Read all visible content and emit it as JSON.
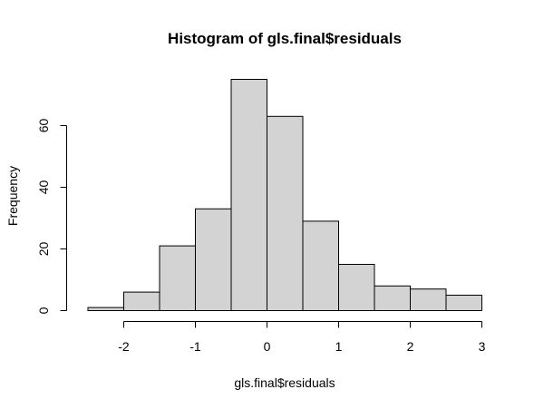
{
  "chart_data": {
    "type": "bar",
    "title": "Histogram of gls.final$residuals",
    "xlabel": "gls.final$residuals",
    "ylabel": "Frequency",
    "bin_edges": [
      -2.5,
      -2.0,
      -1.5,
      -1.0,
      -0.5,
      0.0,
      0.5,
      1.0,
      1.5,
      2.0,
      2.5,
      3.0
    ],
    "values": [
      1,
      6,
      21,
      33,
      75,
      63,
      29,
      15,
      8,
      7,
      5
    ],
    "xlim": [
      -2.5,
      3.0
    ],
    "ylim": [
      0,
      75
    ],
    "x_ticks": [
      -2,
      -1,
      0,
      1,
      2,
      3
    ],
    "x_tick_labels": [
      "-2",
      "-1",
      "0",
      "1",
      "2",
      "3"
    ],
    "y_ticks": [
      0,
      20,
      40,
      60
    ],
    "y_tick_labels": [
      "0",
      "20",
      "40",
      "60"
    ],
    "grid": false,
    "bar_fill": "#d3d3d3",
    "bar_stroke": "#000000"
  }
}
